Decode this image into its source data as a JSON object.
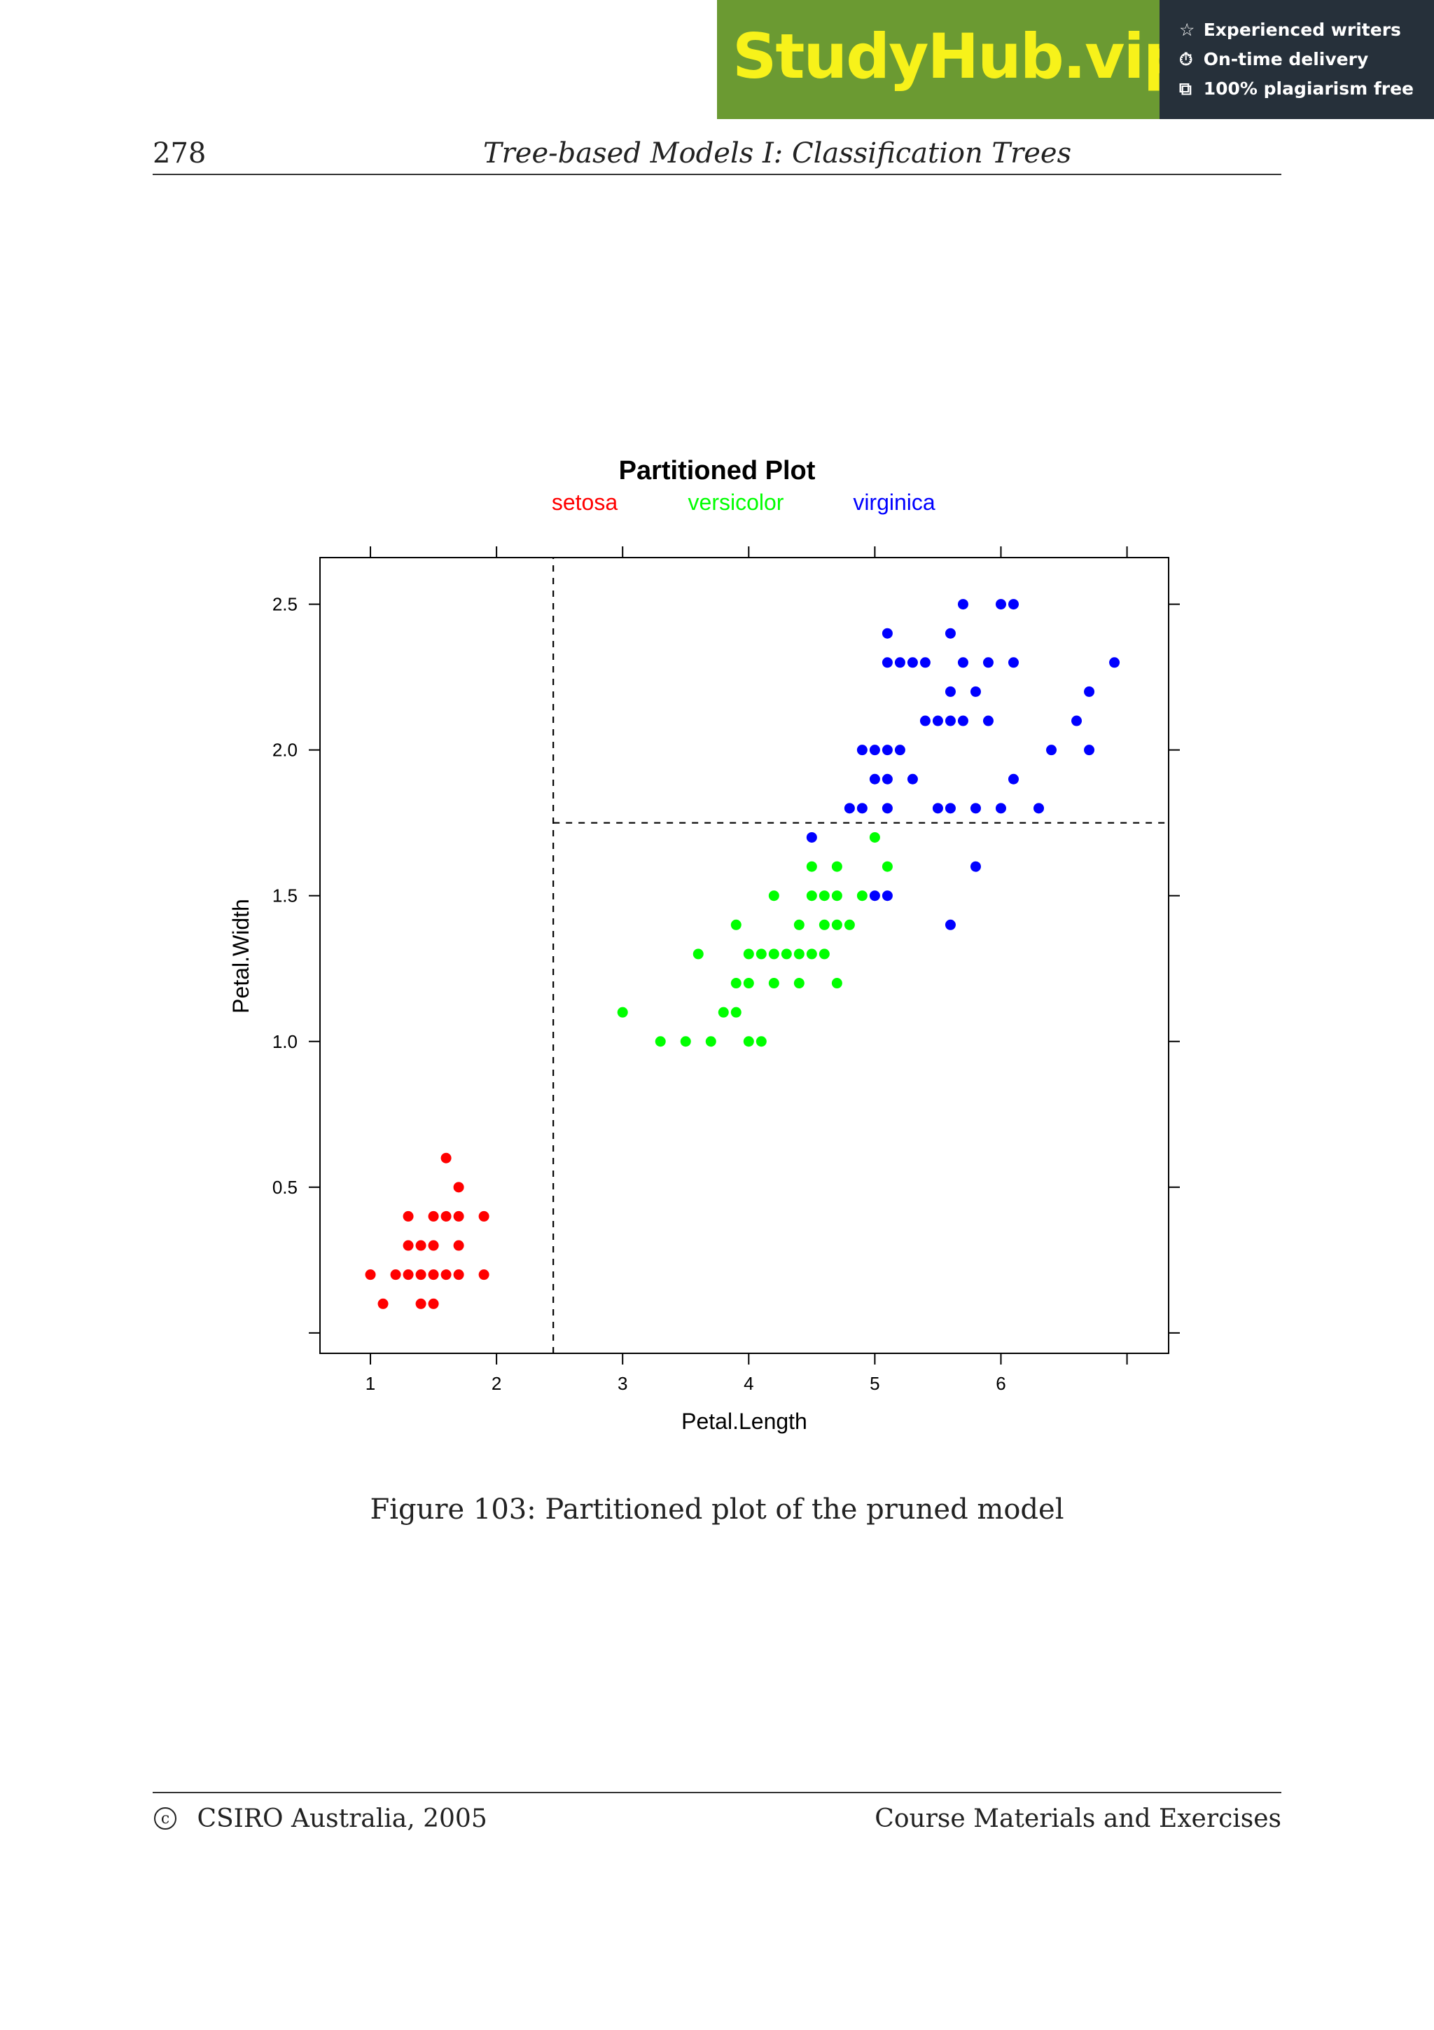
{
  "banner": {
    "brand": "StudyHub.vip",
    "badges": [
      {
        "icon": "star-outline-icon",
        "glyph": "☆",
        "text": "Experienced writers"
      },
      {
        "icon": "clock-icon",
        "glyph": "⏱",
        "text": "On-time delivery"
      },
      {
        "icon": "copy-document-icon",
        "glyph": "⧉",
        "text": "100% plagiarism free"
      }
    ],
    "colors": {
      "brand_bg": "#6b9a32",
      "brand_text": "#f7f21a",
      "badge_bg": "#26303a"
    }
  },
  "header": {
    "page_number": "278",
    "running_title": "Tree-based Models I: Classification Trees"
  },
  "caption": "Figure 103: Partitioned plot of the pruned model",
  "footer": {
    "copyright_symbol": "c",
    "copyright": "CSIRO Australia, 2005",
    "course": "Course Materials and Exercises"
  },
  "chart_data": {
    "type": "scatter",
    "title": "Partitioned Plot",
    "xlabel": "Petal.Length",
    "ylabel": "Petal.Width",
    "xlim": [
      0.6,
      7.33
    ],
    "ylim": [
      -0.07,
      2.66
    ],
    "x_ticks": [
      1,
      2,
      3,
      4,
      5,
      6,
      7
    ],
    "x_tick_labels": [
      "1",
      "2",
      "3",
      "4",
      "5",
      "6",
      ""
    ],
    "y_ticks": [
      0.0,
      0.5,
      1.0,
      1.5,
      2.0,
      2.5
    ],
    "y_tick_labels": [
      "",
      "0.5",
      "1.0",
      "1.5",
      "2.0",
      "2.5"
    ],
    "grid": false,
    "legend_position": "top",
    "partitions": [
      {
        "orientation": "vertical",
        "x": 2.45,
        "y_from": -0.07,
        "y_to": 2.66
      },
      {
        "orientation": "horizontal",
        "y": 1.75,
        "x_from": 2.45,
        "x_to": 7.33
      }
    ],
    "series": [
      {
        "name": "setosa",
        "color": "#ff0000",
        "points": [
          [
            1.6,
            0.6
          ],
          [
            1.7,
            0.5
          ],
          [
            1.3,
            0.4
          ],
          [
            1.5,
            0.4
          ],
          [
            1.6,
            0.4
          ],
          [
            1.7,
            0.4
          ],
          [
            1.9,
            0.4
          ],
          [
            1.3,
            0.3
          ],
          [
            1.4,
            0.3
          ],
          [
            1.5,
            0.3
          ],
          [
            1.7,
            0.3
          ],
          [
            1.0,
            0.2
          ],
          [
            1.2,
            0.2
          ],
          [
            1.3,
            0.2
          ],
          [
            1.4,
            0.2
          ],
          [
            1.5,
            0.2
          ],
          [
            1.6,
            0.2
          ],
          [
            1.7,
            0.2
          ],
          [
            1.9,
            0.2
          ],
          [
            1.1,
            0.1
          ],
          [
            1.4,
            0.1
          ],
          [
            1.5,
            0.1
          ]
        ]
      },
      {
        "name": "versicolor",
        "color": "#00ff00",
        "points": [
          [
            5.0,
            1.7
          ],
          [
            4.5,
            1.6
          ],
          [
            4.7,
            1.6
          ],
          [
            5.1,
            1.6
          ],
          [
            4.2,
            1.5
          ],
          [
            4.5,
            1.5
          ],
          [
            4.6,
            1.5
          ],
          [
            4.7,
            1.5
          ],
          [
            4.9,
            1.5
          ],
          [
            3.9,
            1.4
          ],
          [
            4.4,
            1.4
          ],
          [
            4.6,
            1.4
          ],
          [
            4.7,
            1.4
          ],
          [
            4.8,
            1.4
          ],
          [
            3.6,
            1.3
          ],
          [
            4.0,
            1.3
          ],
          [
            4.1,
            1.3
          ],
          [
            4.2,
            1.3
          ],
          [
            4.3,
            1.3
          ],
          [
            4.4,
            1.3
          ],
          [
            4.5,
            1.3
          ],
          [
            4.6,
            1.3
          ],
          [
            3.9,
            1.2
          ],
          [
            4.0,
            1.2
          ],
          [
            4.2,
            1.2
          ],
          [
            4.4,
            1.2
          ],
          [
            4.7,
            1.2
          ],
          [
            3.8,
            1.1
          ],
          [
            3.9,
            1.1
          ],
          [
            3.0,
            1.1
          ],
          [
            3.3,
            1.0
          ],
          [
            3.5,
            1.0
          ],
          [
            3.7,
            1.0
          ],
          [
            4.0,
            1.0
          ],
          [
            4.1,
            1.0
          ]
        ]
      },
      {
        "name": "virginica",
        "color": "#0000ff",
        "points": [
          [
            5.7,
            2.5
          ],
          [
            6.0,
            2.5
          ],
          [
            6.1,
            2.5
          ],
          [
            5.1,
            2.4
          ],
          [
            5.6,
            2.4
          ],
          [
            5.1,
            2.3
          ],
          [
            5.2,
            2.3
          ],
          [
            5.3,
            2.3
          ],
          [
            5.4,
            2.3
          ],
          [
            5.7,
            2.3
          ],
          [
            5.9,
            2.3
          ],
          [
            6.1,
            2.3
          ],
          [
            6.9,
            2.3
          ],
          [
            5.6,
            2.2
          ],
          [
            5.8,
            2.2
          ],
          [
            6.7,
            2.2
          ],
          [
            5.4,
            2.1
          ],
          [
            5.5,
            2.1
          ],
          [
            5.6,
            2.1
          ],
          [
            5.7,
            2.1
          ],
          [
            5.9,
            2.1
          ],
          [
            6.6,
            2.1
          ],
          [
            4.9,
            2.0
          ],
          [
            5.0,
            2.0
          ],
          [
            5.1,
            2.0
          ],
          [
            5.2,
            2.0
          ],
          [
            6.4,
            2.0
          ],
          [
            6.7,
            2.0
          ],
          [
            5.0,
            1.9
          ],
          [
            5.1,
            1.9
          ],
          [
            5.3,
            1.9
          ],
          [
            6.1,
            1.9
          ],
          [
            4.8,
            1.8
          ],
          [
            4.9,
            1.8
          ],
          [
            5.1,
            1.8
          ],
          [
            5.5,
            1.8
          ],
          [
            5.6,
            1.8
          ],
          [
            5.8,
            1.8
          ],
          [
            6.0,
            1.8
          ],
          [
            6.3,
            1.8
          ],
          [
            4.5,
            1.7
          ],
          [
            5.8,
            1.6
          ],
          [
            5.0,
            1.5
          ],
          [
            5.1,
            1.5
          ],
          [
            5.6,
            1.4
          ]
        ]
      }
    ]
  }
}
